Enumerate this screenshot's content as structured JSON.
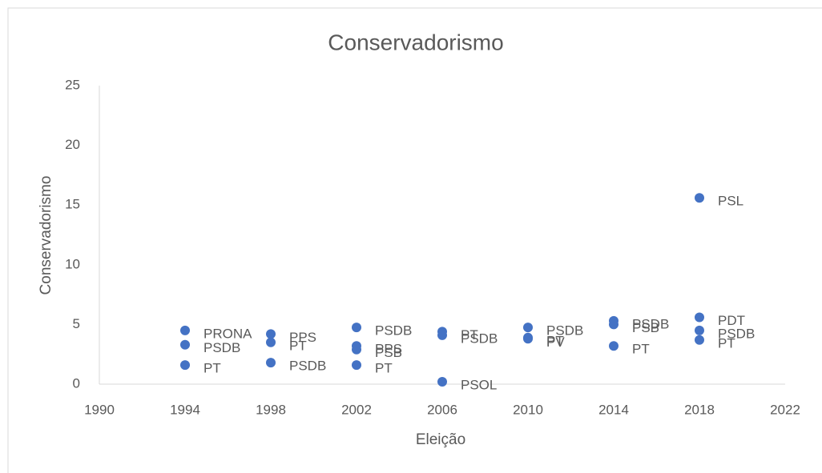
{
  "chart_data": {
    "type": "scatter",
    "title": "Conservadorismo",
    "x_label": "Eleição",
    "y_label": "Conservadorismo",
    "series": [
      {
        "name": "Conservadorismo",
        "color": "#4472c4",
        "x": [
          1994,
          1994,
          1994,
          1998,
          1998,
          1998,
          2002,
          2002,
          2002,
          2002,
          2006,
          2006,
          2006,
          2010,
          2010,
          2010,
          2014,
          2014,
          2014,
          2018,
          2018,
          2018,
          2018
        ],
        "values": [
          4.5,
          3.3,
          1.6,
          4.2,
          3.5,
          1.8,
          4.75,
          3.2,
          2.9,
          1.6,
          4.4,
          4.1,
          0.2,
          4.75,
          3.9,
          3.8,
          5.3,
          5.0,
          3.2,
          15.6,
          5.6,
          4.5,
          3.7
        ],
        "labels": [
          "PRONA",
          "PSDB",
          "PT",
          "PPS",
          "PT",
          "PSDB",
          "PSDB",
          "PPS",
          "PSB",
          "PT",
          "PT",
          "PSDB",
          "PSOL",
          "PSDB",
          "PT",
          "PV",
          "PSDB",
          "PSB",
          "PT",
          "PSL",
          "PDT",
          "PSDB",
          "PT"
        ]
      }
    ],
    "xlim": [
      1990,
      2022
    ],
    "xticks": [
      1990,
      1994,
      1998,
      2002,
      2006,
      2010,
      2014,
      2018,
      2022
    ],
    "ylim": [
      0,
      25
    ],
    "yticks": [
      0,
      5,
      10,
      15,
      20,
      25
    ]
  }
}
